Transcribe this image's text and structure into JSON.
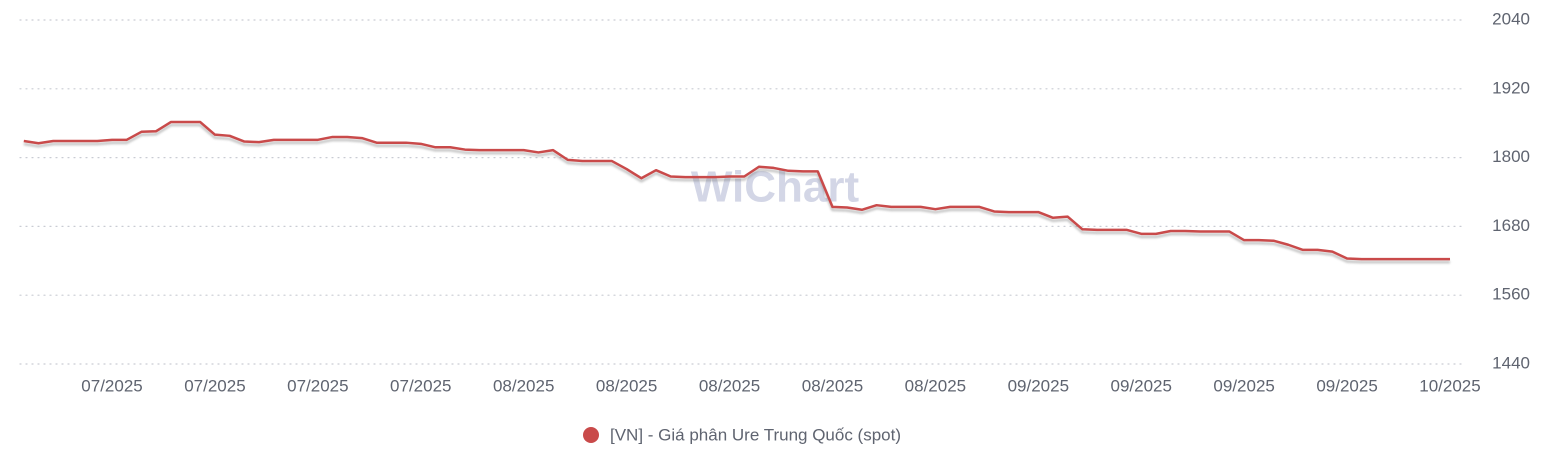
{
  "chart_data": {
    "type": "line",
    "watermark": "WiChart",
    "categories": [
      null,
      null,
      null,
      null,
      null,
      null,
      "07/2025",
      null,
      null,
      null,
      null,
      null,
      null,
      "07/2025",
      null,
      null,
      null,
      null,
      null,
      null,
      "07/2025",
      null,
      null,
      null,
      null,
      null,
      null,
      "07/2025",
      null,
      null,
      null,
      null,
      null,
      null,
      "08/2025",
      null,
      null,
      null,
      null,
      null,
      null,
      "08/2025",
      null,
      null,
      null,
      null,
      null,
      null,
      "08/2025",
      null,
      null,
      null,
      null,
      null,
      null,
      "08/2025",
      null,
      null,
      null,
      null,
      null,
      null,
      "08/2025",
      null,
      null,
      null,
      null,
      null,
      null,
      "09/2025",
      null,
      null,
      null,
      null,
      null,
      null,
      "09/2025",
      null,
      null,
      null,
      null,
      null,
      null,
      "09/2025",
      null,
      null,
      null,
      null,
      null,
      null,
      "09/2025",
      null,
      null,
      null,
      null,
      null,
      null,
      "10/2025"
    ],
    "series": [
      {
        "name": "[VN] - Giá phân Ure Trung Quốc (spot)",
        "color": "#c94a4a",
        "values": [
          1829,
          1825,
          1829,
          1829,
          1829,
          1829,
          1831,
          1831,
          1845,
          1846,
          1862,
          1862,
          1862,
          1840,
          1838,
          1828,
          1827,
          1831,
          1831,
          1831,
          1831,
          1836,
          1836,
          1834,
          1826,
          1826,
          1826,
          1824,
          1818,
          1818,
          1814,
          1813,
          1813,
          1813,
          1813,
          1809,
          1813,
          1796,
          1794,
          1794,
          1794,
          1780,
          1764,
          1778,
          1767,
          1766,
          1766,
          1766,
          1767,
          1767,
          1784,
          1782,
          1777,
          1776,
          1776,
          1714,
          1713,
          1709,
          1717,
          1714,
          1714,
          1714,
          1710,
          1714,
          1714,
          1714,
          1706,
          1705,
          1705,
          1705,
          1695,
          1697,
          1675,
          1674,
          1674,
          1674,
          1667,
          1667,
          1672,
          1672,
          1671,
          1671,
          1671,
          1656,
          1656,
          1655,
          1648,
          1639,
          1639,
          1636,
          1624,
          1623,
          1623,
          1623,
          1623,
          1623,
          1623,
          1623
        ]
      }
    ],
    "ylim": [
      1440,
      2040
    ],
    "yticks": [
      1440,
      1560,
      1680,
      1800,
      1920,
      2040
    ],
    "grid": true,
    "legend": "bottom"
  }
}
